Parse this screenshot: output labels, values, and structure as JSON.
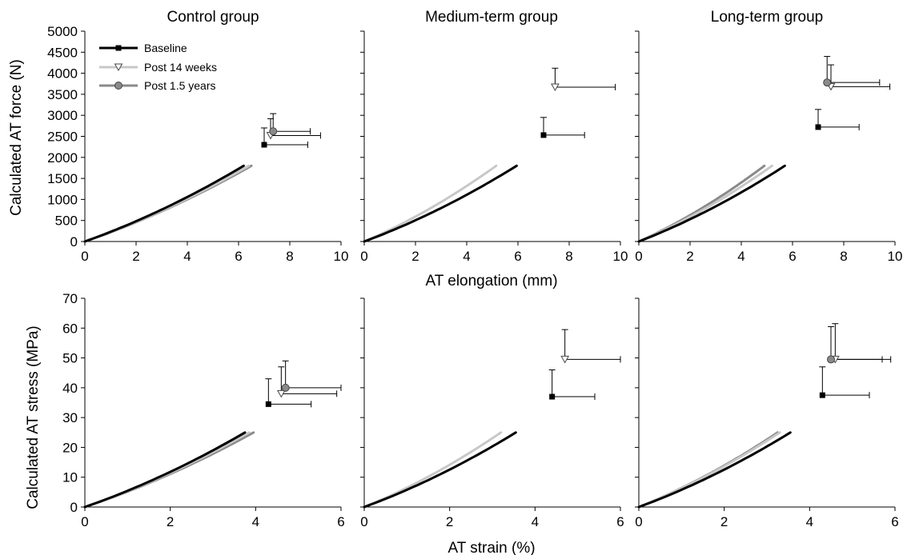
{
  "colors": {
    "baseline": "#000000",
    "post14": "#c8c8c8",
    "post15": "#8a8a8a",
    "axis": "#000000"
  },
  "column_titles": [
    "Control group",
    "Medium-term group",
    "Long-term group"
  ],
  "top_row": {
    "ylabel": "Calculated AT force (N)",
    "xlabel": "AT elongation (mm)",
    "yticks": [
      "0",
      "500",
      "1000",
      "1500",
      "2000",
      "2500",
      "3000",
      "3500",
      "4000",
      "4500",
      "5000"
    ],
    "xticks_first": [
      "0",
      "2",
      "4",
      "6",
      "8",
      "10"
    ],
    "xticks_rest": [
      "0",
      "2",
      "4",
      "6",
      "8",
      "10"
    ]
  },
  "bottom_row": {
    "ylabel": "Calculated AT stress (MPa)",
    "xlabel": "AT strain (%)",
    "yticks": [
      "0",
      "10",
      "20",
      "30",
      "40",
      "50",
      "60",
      "70"
    ],
    "xticks_first": [
      "0",
      "2",
      "4",
      "6"
    ],
    "xticks_rest": [
      "0",
      "2",
      "4",
      "6"
    ]
  },
  "legend": {
    "placement": "top-left of first panel",
    "entries": [
      "Baseline",
      "Post 14 weeks",
      "Post 1.5 years"
    ]
  },
  "chart_data": [
    {
      "type": "line",
      "panel": "Control group - force",
      "title": "Control group",
      "xlim": [
        0,
        10
      ],
      "ylim": [
        0,
        5000
      ],
      "curves": [
        {
          "series": "Baseline",
          "x_end": 6.2,
          "y_end": 1800
        },
        {
          "series": "Post 14 weeks",
          "x_end": 6.4,
          "y_end": 1800
        },
        {
          "series": "Post 1.5 years",
          "x_end": 6.5,
          "y_end": 1800
        }
      ],
      "points": [
        {
          "series": "Baseline",
          "x": 7.0,
          "y": 2300,
          "x_err": 1.7,
          "y_err": 400
        },
        {
          "series": "Post 14 weeks",
          "x": 7.25,
          "y": 2520,
          "x_err": 1.95,
          "y_err": 400
        },
        {
          "series": "Post 1.5 years",
          "x": 7.35,
          "y": 2620,
          "x_err": 1.45,
          "y_err": 420
        }
      ]
    },
    {
      "type": "line",
      "panel": "Medium-term group - force",
      "title": "Medium-term group",
      "xlim": [
        0,
        10
      ],
      "ylim": [
        0,
        5000
      ],
      "curves": [
        {
          "series": "Baseline",
          "x_end": 5.95,
          "y_end": 1800
        },
        {
          "series": "Post 14 weeks",
          "x_end": 5.15,
          "y_end": 1800
        }
      ],
      "points": [
        {
          "series": "Baseline",
          "x": 7.0,
          "y": 2530,
          "x_err": 1.6,
          "y_err": 420
        },
        {
          "series": "Post 14 weeks",
          "x": 7.45,
          "y": 3670,
          "x_err": 2.35,
          "y_err": 450
        }
      ]
    },
    {
      "type": "line",
      "panel": "Long-term group - force",
      "title": "Long-term group",
      "xlim": [
        0,
        10
      ],
      "ylim": [
        0,
        5000
      ],
      "curves": [
        {
          "series": "Baseline",
          "x_end": 5.7,
          "y_end": 1800
        },
        {
          "series": "Post 14 weeks",
          "x_end": 5.2,
          "y_end": 1800
        },
        {
          "series": "Post 1.5 years",
          "x_end": 4.9,
          "y_end": 1800
        }
      ],
      "points": [
        {
          "series": "Baseline",
          "x": 7.0,
          "y": 2720,
          "x_err": 1.6,
          "y_err": 420
        },
        {
          "series": "Post 14 weeks",
          "x": 7.5,
          "y": 3680,
          "x_err": 2.3,
          "y_err": 520
        },
        {
          "series": "Post 1.5 years",
          "x": 7.35,
          "y": 3780,
          "x_err": 2.05,
          "y_err": 620
        }
      ]
    },
    {
      "type": "line",
      "panel": "Control group - stress",
      "title": "",
      "xlim": [
        0,
        6
      ],
      "ylim": [
        0,
        70
      ],
      "curves": [
        {
          "series": "Baseline",
          "x_end": 3.75,
          "y_end": 25
        },
        {
          "series": "Post 14 weeks",
          "x_end": 3.85,
          "y_end": 25
        },
        {
          "series": "Post 1.5 years",
          "x_end": 3.95,
          "y_end": 25
        }
      ],
      "points": [
        {
          "series": "Baseline",
          "x": 4.3,
          "y": 34.5,
          "x_err": 1.0,
          "y_err": 8.5
        },
        {
          "series": "Post 14 weeks",
          "x": 4.6,
          "y": 38.0,
          "x_err": 1.3,
          "y_err": 9.0
        },
        {
          "series": "Post 1.5 years",
          "x": 4.7,
          "y": 40.0,
          "x_err": 1.3,
          "y_err": 9.0
        }
      ]
    },
    {
      "type": "line",
      "panel": "Medium-term group - stress",
      "title": "",
      "xlim": [
        0,
        6
      ],
      "ylim": [
        0,
        70
      ],
      "curves": [
        {
          "series": "Baseline",
          "x_end": 3.55,
          "y_end": 25
        },
        {
          "series": "Post 14 weeks",
          "x_end": 3.2,
          "y_end": 25
        }
      ],
      "points": [
        {
          "series": "Baseline",
          "x": 4.4,
          "y": 37.0,
          "x_err": 1.0,
          "y_err": 9.0
        },
        {
          "series": "Post 14 weeks",
          "x": 4.7,
          "y": 49.5,
          "x_err": 1.3,
          "y_err": 10.0
        }
      ]
    },
    {
      "type": "line",
      "panel": "Long-term group - stress",
      "title": "",
      "xlim": [
        0,
        6
      ],
      "ylim": [
        0,
        70
      ],
      "curves": [
        {
          "series": "Baseline",
          "x_end": 3.55,
          "y_end": 25
        },
        {
          "series": "Post 14 weeks",
          "x_end": 3.3,
          "y_end": 25
        },
        {
          "series": "Post 1.5 years",
          "x_end": 3.25,
          "y_end": 25
        }
      ],
      "points": [
        {
          "series": "Baseline",
          "x": 4.3,
          "y": 37.5,
          "x_err": 1.1,
          "y_err": 9.5
        },
        {
          "series": "Post 14 weeks",
          "x": 4.6,
          "y": 49.5,
          "x_err": 1.3,
          "y_err": 12.0
        },
        {
          "series": "Post 1.5 years",
          "x": 4.5,
          "y": 49.5,
          "x_err": 1.2,
          "y_err": 11.0
        }
      ]
    }
  ]
}
